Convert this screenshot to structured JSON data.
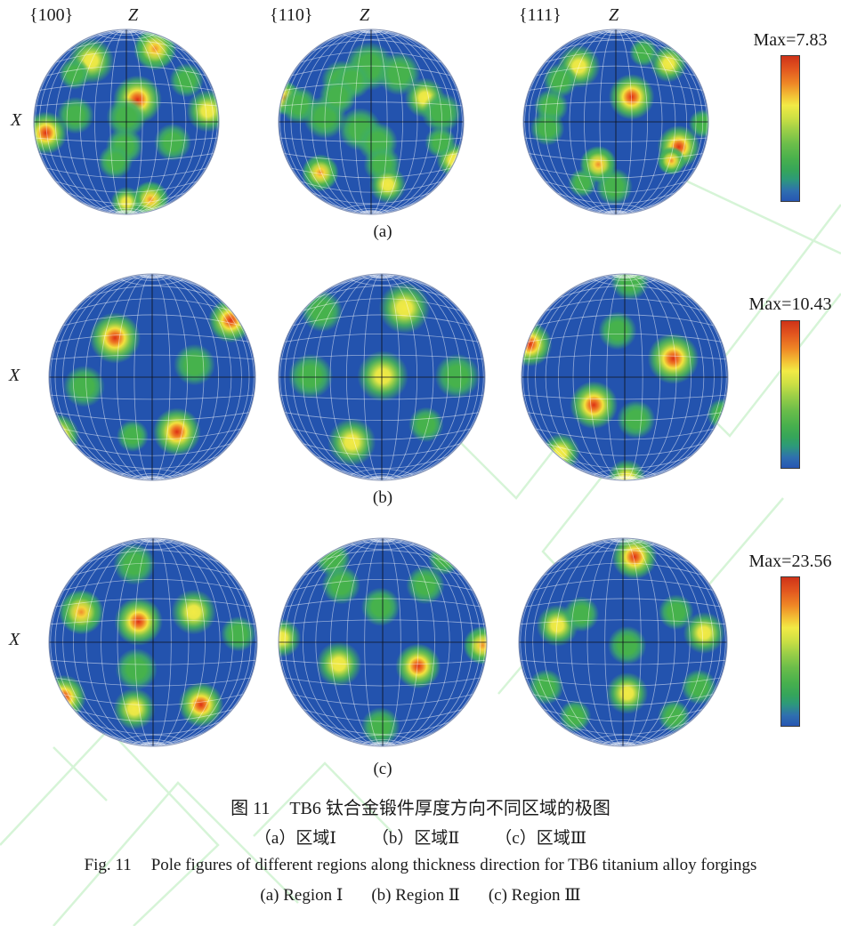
{
  "headers": {
    "miller": [
      "{100}",
      "{110}",
      "{111}"
    ],
    "z": "Z",
    "x": "X"
  },
  "caption": {
    "zh_prefix": "图 11",
    "zh_text": "TB6 钛合金锻件厚度方向不同区域的极图",
    "zh_sub": [
      "（a）区域Ⅰ",
      "（b）区域Ⅱ",
      "（c）区域Ⅲ"
    ],
    "en_prefix": "Fig. 11",
    "en_text": "Pole figures of different regions along thickness direction for TB6 titanium alloy forgings",
    "en_sub": [
      "(a) Region Ⅰ",
      "(b) Region Ⅱ",
      "(c) Region Ⅲ"
    ]
  },
  "colors": {
    "background_blue": "#2353ae",
    "contour_green": "#46b24c",
    "contour_yellow": "#f2ea45",
    "contour_orange": "#ef8e2e",
    "contour_red": "#dd3014",
    "grid_white": "rgba(255,255,255,0.5)",
    "watermark_green": "#aeeab0"
  },
  "pole_figures": {
    "level_legend": {
      "1": "green",
      "2": "yellow-core",
      "3": "orange-core",
      "4": "red-core"
    },
    "rows": [
      {
        "row_label": "(a)",
        "max_label": "Max=7.83",
        "figures": [
          {
            "blobs": [
              [
                0.31,
                -0.79,
                0.15,
                3
              ],
              [
                -0.38,
                -0.66,
                0.16,
                2
              ],
              [
                -0.56,
                -0.52,
                0.11,
                1
              ],
              [
                0.65,
                -0.45,
                0.12,
                1
              ],
              [
                0.12,
                -0.24,
                0.17,
                4
              ],
              [
                0.0,
                -0.05,
                0.14,
                1
              ],
              [
                -0.55,
                -0.07,
                0.13,
                1
              ],
              [
                -0.87,
                0.12,
                0.15,
                4
              ],
              [
                0.88,
                -0.12,
                0.15,
                2
              ],
              [
                -0.02,
                0.26,
                0.13,
                1
              ],
              [
                -0.12,
                0.43,
                0.12,
                1
              ],
              [
                0.5,
                0.22,
                0.13,
                1
              ],
              [
                0.26,
                0.84,
                0.13,
                3
              ],
              [
                0.0,
                0.87,
                0.11,
                2
              ]
            ]
          },
          {
            "blobs": [
              [
                -0.02,
                -0.6,
                0.17,
                1
              ],
              [
                -0.32,
                -0.45,
                0.14,
                1
              ],
              [
                0.3,
                -0.52,
                0.15,
                1
              ],
              [
                -0.2,
                -0.45,
                0.13,
                1
              ],
              [
                -0.94,
                -0.26,
                0.12,
                3
              ],
              [
                -0.78,
                -0.18,
                0.13,
                1
              ],
              [
                0.58,
                -0.26,
                0.14,
                2
              ],
              [
                0.76,
                -0.1,
                0.14,
                1
              ],
              [
                -0.5,
                -0.05,
                0.15,
                1
              ],
              [
                -0.36,
                -0.28,
                0.13,
                1
              ],
              [
                -0.12,
                0.08,
                0.15,
                1
              ],
              [
                0.07,
                0.22,
                0.14,
                1
              ],
              [
                0.12,
                0.46,
                0.13,
                1
              ],
              [
                0.18,
                0.68,
                0.13,
                2
              ],
              [
                -0.55,
                0.55,
                0.13,
                3
              ],
              [
                0.89,
                0.41,
                0.12,
                2
              ],
              [
                0.75,
                0.22,
                0.11,
                1
              ]
            ]
          },
          {
            "blobs": [
              [
                0.17,
                -0.27,
                0.16,
                4
              ],
              [
                0.57,
                -0.63,
                0.13,
                2
              ],
              [
                0.3,
                -0.75,
                0.1,
                1
              ],
              [
                -0.4,
                -0.6,
                0.15,
                2
              ],
              [
                -0.6,
                -0.45,
                0.12,
                1
              ],
              [
                -0.7,
                -0.17,
                0.12,
                1
              ],
              [
                -0.74,
                0.07,
                0.12,
                1
              ],
              [
                0.68,
                0.27,
                0.15,
                4
              ],
              [
                0.6,
                0.42,
                0.1,
                3
              ],
              [
                -0.19,
                0.46,
                0.13,
                3
              ],
              [
                -0.02,
                0.7,
                0.13,
                1
              ],
              [
                0.94,
                0.02,
                0.1,
                1
              ],
              [
                -0.36,
                0.66,
                0.1,
                1
              ]
            ]
          }
        ]
      },
      {
        "row_label": "(b)",
        "max_label": "Max=10.43",
        "figures": [
          {
            "blobs": [
              [
                -0.36,
                -0.38,
                0.16,
                4
              ],
              [
                0.76,
                -0.55,
                0.14,
                4
              ],
              [
                0.41,
                -0.12,
                0.13,
                1
              ],
              [
                -0.66,
                0.09,
                0.13,
                1
              ],
              [
                -0.92,
                0.57,
                0.14,
                4
              ],
              [
                0.24,
                0.53,
                0.15,
                4
              ],
              [
                -0.19,
                0.57,
                0.1,
                1
              ]
            ]
          },
          {
            "blobs": [
              [
                0.22,
                -0.67,
                0.16,
                2
              ],
              [
                -0.58,
                -0.64,
                0.13,
                1
              ],
              [
                0.01,
                -0.01,
                0.16,
                2
              ],
              [
                -0.69,
                -0.01,
                0.14,
                1
              ],
              [
                0.73,
                -0.01,
                0.14,
                1
              ],
              [
                -0.29,
                0.63,
                0.15,
                2
              ],
              [
                0.43,
                0.46,
                0.11,
                1
              ]
            ]
          },
          {
            "blobs": [
              [
                0.05,
                -0.93,
                0.12,
                1
              ],
              [
                -0.07,
                -0.45,
                0.12,
                1
              ],
              [
                -0.92,
                -0.32,
                0.14,
                4
              ],
              [
                0.47,
                -0.18,
                0.16,
                4
              ],
              [
                -0.3,
                0.27,
                0.15,
                4
              ],
              [
                0.11,
                0.41,
                0.12,
                1
              ],
              [
                -0.62,
                0.73,
                0.12,
                2
              ],
              [
                0.02,
                0.98,
                0.12,
                2
              ],
              [
                0.95,
                0.36,
                0.1,
                1
              ]
            ]
          }
        ]
      },
      {
        "row_label": "(c)",
        "max_label": "Max=23.56",
        "figures": [
          {
            "blobs": [
              [
                -0.18,
                -0.75,
                0.13,
                1
              ],
              [
                -0.69,
                -0.29,
                0.14,
                3
              ],
              [
                -0.14,
                -0.2,
                0.15,
                4
              ],
              [
                0.39,
                -0.29,
                0.14,
                2
              ],
              [
                0.82,
                -0.08,
                0.11,
                1
              ],
              [
                -0.16,
                0.26,
                0.13,
                1
              ],
              [
                -0.86,
                0.53,
                0.14,
                4
              ],
              [
                -0.18,
                0.64,
                0.13,
                2
              ],
              [
                0.46,
                0.6,
                0.14,
                4
              ]
            ]
          },
          {
            "blobs": [
              [
                -0.48,
                -0.8,
                0.11,
                1
              ],
              [
                -0.4,
                -0.55,
                0.12,
                1
              ],
              [
                0.41,
                -0.55,
                0.12,
                1
              ],
              [
                0.59,
                -0.8,
                0.1,
                1
              ],
              [
                -0.02,
                -0.34,
                0.12,
                1
              ],
              [
                -0.97,
                -0.04,
                0.12,
                2
              ],
              [
                0.96,
                0.03,
                0.12,
                3
              ],
              [
                -0.42,
                0.21,
                0.14,
                2
              ],
              [
                0.34,
                0.23,
                0.14,
                4
              ],
              [
                -0.02,
                0.81,
                0.12,
                1
              ]
            ]
          },
          {
            "blobs": [
              [
                0.11,
                -0.82,
                0.14,
                4
              ],
              [
                -0.63,
                -0.16,
                0.13,
                2
              ],
              [
                -0.4,
                -0.27,
                0.11,
                1
              ],
              [
                0.51,
                -0.29,
                0.11,
                1
              ],
              [
                0.78,
                -0.09,
                0.13,
                2
              ],
              [
                0.04,
                0.03,
                0.12,
                1
              ],
              [
                0.04,
                0.49,
                0.13,
                2
              ],
              [
                -0.74,
                0.43,
                0.11,
                1
              ],
              [
                -0.46,
                0.71,
                0.1,
                1
              ],
              [
                0.73,
                0.43,
                0.11,
                1
              ],
              [
                0.49,
                0.71,
                0.1,
                1
              ]
            ]
          }
        ]
      }
    ]
  }
}
